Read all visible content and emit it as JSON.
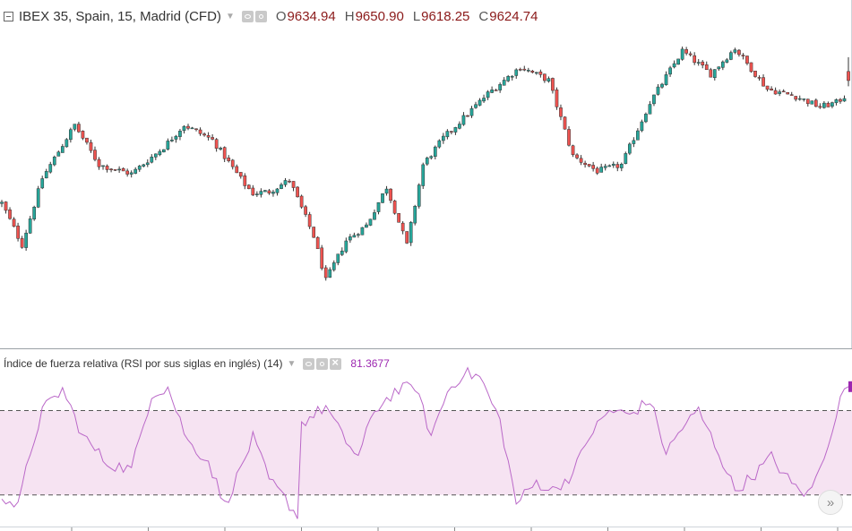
{
  "header": {
    "symbol_title": "IBEX 35, Spain, 15, Madrid (CFD)",
    "ohlc": [
      {
        "key": "O",
        "value": "9634.94"
      },
      {
        "key": "H",
        "value": "9650.90"
      },
      {
        "key": "L",
        "value": "9618.25"
      },
      {
        "key": "C",
        "value": "9624.74"
      }
    ]
  },
  "rsi_panel": {
    "title": "Índice de fuerza relativa (RSI por sus siglas en inglés) (14)",
    "value": "81.3677"
  },
  "colors": {
    "up": "#26a69a",
    "down": "#ef5350",
    "wick": "#333333",
    "rsi_line": "#ba68c8",
    "rsi_band": "#f6e3f2",
    "ohlc_value": "#8b1a1a"
  },
  "scroll_button": {
    "icon": "double-chevron-right-icon",
    "label": "»"
  },
  "chart_data": [
    {
      "type": "candlestick",
      "title": "IBEX 35, Spain, 15, Madrid (CFD)",
      "ylim": [
        9335,
        9680
      ],
      "anchors": [
        [
          0,
          9487
        ],
        [
          5,
          9440
        ],
        [
          10,
          9515
        ],
        [
          18,
          9575
        ],
        [
          24,
          9530
        ],
        [
          32,
          9520
        ],
        [
          40,
          9550
        ],
        [
          45,
          9575
        ],
        [
          52,
          9558
        ],
        [
          60,
          9508
        ],
        [
          62,
          9498
        ],
        [
          66,
          9500
        ],
        [
          71,
          9513
        ],
        [
          77,
          9450
        ],
        [
          80,
          9400
        ],
        [
          85,
          9445
        ],
        [
          90,
          9462
        ],
        [
          95,
          9505
        ],
        [
          100,
          9440
        ],
        [
          104,
          9530
        ],
        [
          109,
          9560
        ],
        [
          120,
          9610
        ],
        [
          128,
          9640
        ],
        [
          135,
          9625
        ],
        [
          141,
          9540
        ],
        [
          147,
          9523
        ],
        [
          153,
          9530
        ],
        [
          160,
          9600
        ],
        [
          168,
          9658
        ],
        [
          175,
          9632
        ],
        [
          181,
          9661
        ],
        [
          189,
          9615
        ],
        [
          196,
          9607
        ],
        [
          202,
          9595
        ],
        [
          206,
          9600
        ],
        [
          209,
          9610
        ]
      ],
      "last": {
        "open": 9634.94,
        "high": 9650.9,
        "low": 9618.25,
        "close": 9624.74
      }
    },
    {
      "type": "line",
      "title": "Índice de fuerza relativa (RSI por sus siglas en inglés) (14)",
      "ylim": [
        15,
        97
      ],
      "bands": [
        30,
        70
      ],
      "anchors": [
        [
          0,
          30
        ],
        [
          4,
          24
        ],
        [
          7,
          50
        ],
        [
          10,
          70
        ],
        [
          15,
          80
        ],
        [
          20,
          58
        ],
        [
          26,
          45
        ],
        [
          32,
          42
        ],
        [
          37,
          78
        ],
        [
          41,
          81
        ],
        [
          46,
          55
        ],
        [
          51,
          46
        ],
        [
          55,
          25
        ],
        [
          58,
          38
        ],
        [
          62,
          57
        ],
        [
          66,
          37
        ],
        [
          70,
          28
        ],
        [
          73,
          20
        ],
        [
          74,
          64
        ],
        [
          80,
          72
        ],
        [
          84,
          58
        ],
        [
          88,
          48
        ],
        [
          92,
          70
        ],
        [
          97,
          79
        ],
        [
          102,
          82
        ],
        [
          106,
          58
        ],
        [
          110,
          79
        ],
        [
          114,
          88
        ],
        [
          118,
          86
        ],
        [
          123,
          65
        ],
        [
          127,
          26
        ],
        [
          132,
          36
        ],
        [
          136,
          32
        ],
        [
          141,
          40
        ],
        [
          145,
          58
        ],
        [
          150,
          70
        ],
        [
          155,
          68
        ],
        [
          160,
          75
        ],
        [
          164,
          50
        ],
        [
          168,
          62
        ],
        [
          172,
          70
        ],
        [
          177,
          50
        ],
        [
          181,
          32
        ],
        [
          186,
          40
        ],
        [
          190,
          48
        ],
        [
          195,
          35
        ],
        [
          199,
          30
        ],
        [
          202,
          42
        ],
        [
          205,
          62
        ],
        [
          208,
          81
        ]
      ],
      "last_value": 81.3677
    }
  ]
}
